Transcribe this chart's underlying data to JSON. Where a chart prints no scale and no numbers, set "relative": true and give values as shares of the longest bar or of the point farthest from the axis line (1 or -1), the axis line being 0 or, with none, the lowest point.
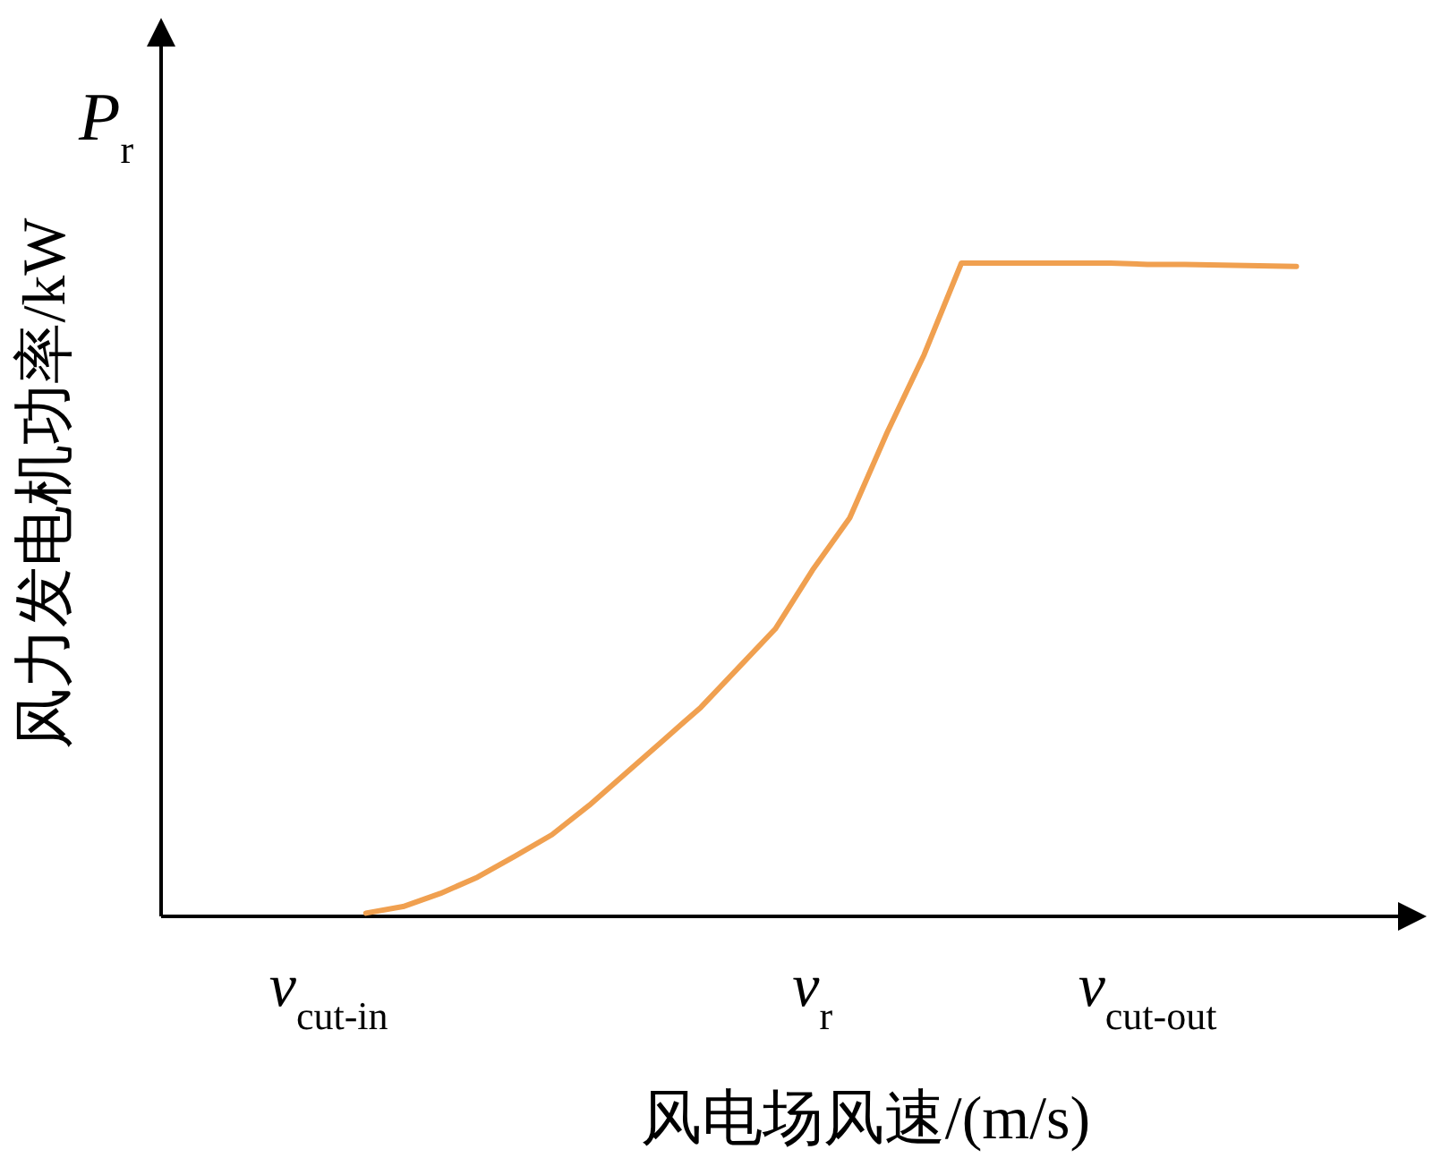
{
  "chart_data": {
    "type": "line",
    "relative": true,
    "xlabel": "风电场风速/(m/s)",
    "ylabel": "风力发电机功率/kW",
    "annotations": [
      "P$_{r}$"
    ],
    "categories": [
      null,
      null,
      null,
      null,
      "v$_{cut-in}$",
      null,
      null,
      null,
      null,
      null,
      null,
      null,
      null,
      null,
      null,
      null,
      null,
      "v$_{r}$",
      null,
      null,
      null,
      null,
      null,
      null,
      null,
      null,
      "v$_{cut-out}$",
      null,
      null,
      null,
      null,
      null,
      null,
      null
    ],
    "series": [
      {
        "color": "#f0a050",
        "values": [
          null,
          null,
          null,
          null,
          null,
          0.005,
          0.015,
          0.035,
          0.06,
          0.092,
          0.125,
          0.17,
          0.22,
          0.27,
          0.32,
          0.38,
          0.44,
          0.53,
          0.61,
          0.74,
          0.86,
          1,
          1,
          1,
          1,
          1,
          0.998,
          0.998,
          0.997,
          0.996,
          0.995,
          null,
          null,
          null
        ]
      }
    ]
  }
}
